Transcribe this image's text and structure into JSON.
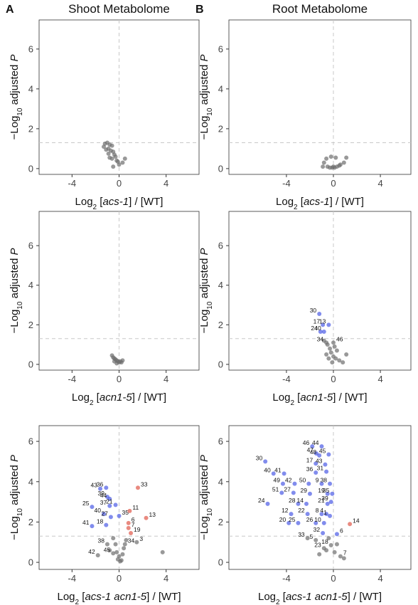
{
  "chart_data": [
    {
      "type": "scatter",
      "panel": "A",
      "title": "Shoot Metabolome",
      "y_label": [
        {
          "text": "−Log",
          "style": "plain"
        },
        {
          "text": "10",
          "style": "sub"
        },
        {
          "text": " adjusted ",
          "style": "plain"
        },
        {
          "text": "P",
          "style": "italic"
        }
      ],
      "x_label": [
        {
          "text": "Log",
          "style": "plain"
        },
        {
          "text": "2",
          "style": "sub"
        },
        {
          "text": " [",
          "style": "plain"
        },
        {
          "text": "acs-1",
          "style": "italic"
        },
        {
          "text": "] / [WT]",
          "style": "plain"
        }
      ],
      "xlim": [
        -6.8,
        6.8
      ],
      "ylim": [
        -0.29,
        7.46
      ],
      "xticks": [
        -4,
        0,
        4
      ],
      "yticks": [
        0,
        2,
        4,
        6
      ],
      "hline": 1.3,
      "vline": 0,
      "series": [
        {
          "color": "#6e6e6e",
          "x": [
            -1.2,
            -1.0,
            -0.8,
            -0.6,
            -0.9,
            -1.1,
            -0.7,
            -0.5,
            -0.4,
            -0.3,
            -0.8,
            -0.6,
            -0.2,
            -0.1,
            0.0,
            0.3,
            0.5,
            -1.3,
            -0.9,
            -0.5
          ],
          "y": [
            1.25,
            1.3,
            1.2,
            1.15,
            1.0,
            0.95,
            0.9,
            0.85,
            0.7,
            0.6,
            0.55,
            0.5,
            0.4,
            0.35,
            0.2,
            0.3,
            0.5,
            1.1,
            0.75,
            0.1
          ]
        }
      ]
    },
    {
      "type": "scatter",
      "panel": "B",
      "title": "Root Metabolome",
      "y_label": [
        {
          "text": "−Log",
          "style": "plain"
        },
        {
          "text": "10",
          "style": "sub"
        },
        {
          "text": " adjusted ",
          "style": "plain"
        },
        {
          "text": "P",
          "style": "italic"
        }
      ],
      "x_label": [
        {
          "text": "Log",
          "style": "plain"
        },
        {
          "text": "2",
          "style": "sub"
        },
        {
          "text": " [",
          "style": "plain"
        },
        {
          "text": "acs-1",
          "style": "italic"
        },
        {
          "text": "] / [WT]",
          "style": "plain"
        }
      ],
      "xlim": [
        -8.9,
        6.6
      ],
      "ylim": [
        -0.29,
        7.46
      ],
      "xticks": [
        -4,
        0,
        4
      ],
      "yticks": [
        0,
        2,
        4,
        6
      ],
      "hline": 1.3,
      "vline": 0,
      "series": [
        {
          "color": "#6e6e6e",
          "x": [
            -0.8,
            -0.5,
            -0.3,
            -0.1,
            0.1,
            0.3,
            0.6,
            0.9,
            1.1,
            -0.6,
            -0.2,
            0.2,
            0.5,
            0.0,
            -0.9
          ],
          "y": [
            0.3,
            0.1,
            0.05,
            0.05,
            0.05,
            0.1,
            0.2,
            0.3,
            0.55,
            0.5,
            0.6,
            0.55,
            0.15,
            0.1,
            0.1
          ]
        }
      ]
    },
    {
      "type": "scatter",
      "y_label": [
        {
          "text": "−Log",
          "style": "plain"
        },
        {
          "text": "10",
          "style": "sub"
        },
        {
          "text": " adjusted ",
          "style": "plain"
        },
        {
          "text": "P",
          "style": "italic"
        }
      ],
      "x_label": [
        {
          "text": "Log",
          "style": "plain"
        },
        {
          "text": "2",
          "style": "sub"
        },
        {
          "text": " [",
          "style": "plain"
        },
        {
          "text": "acn1-5",
          "style": "italic"
        },
        {
          "text": "] / [WT]",
          "style": "plain"
        }
      ],
      "xlim": [
        -6.8,
        6.8
      ],
      "ylim": [
        -0.29,
        7.73
      ],
      "xticks": [
        -4,
        0,
        4
      ],
      "yticks": [
        0,
        2,
        4,
        6
      ],
      "hline": 1.3,
      "vline": 0,
      "series": [
        {
          "color": "#6e6e6e",
          "x": [
            -0.6,
            -0.5,
            -0.4,
            -0.3,
            -0.2,
            -0.1,
            0,
            0.1,
            0.2,
            0.3,
            -0.4,
            -0.2
          ],
          "y": [
            0.45,
            0.35,
            0.3,
            0.25,
            0.2,
            0.15,
            0.1,
            0.15,
            0.1,
            0.2,
            0.15,
            0.05
          ]
        }
      ]
    },
    {
      "type": "scatter",
      "y_label": [
        {
          "text": "−Log",
          "style": "plain"
        },
        {
          "text": "10",
          "style": "sub"
        },
        {
          "text": " adjusted ",
          "style": "plain"
        },
        {
          "text": "P",
          "style": "italic"
        }
      ],
      "x_label": [
        {
          "text": "Log",
          "style": "plain"
        },
        {
          "text": "2",
          "style": "sub"
        },
        {
          "text": " [",
          "style": "plain"
        },
        {
          "text": "acn1-5",
          "style": "italic"
        },
        {
          "text": "] / [WT]",
          "style": "plain"
        }
      ],
      "xlim": [
        -8.9,
        6.6
      ],
      "ylim": [
        -0.29,
        7.73
      ],
      "xticks": [
        -4,
        0,
        4
      ],
      "yticks": [
        0,
        2,
        4,
        6
      ],
      "hline": 1.3,
      "vline": 0,
      "series": [
        {
          "color": "#6e6e6e",
          "x": [
            -0.8,
            -0.5,
            -0.3,
            -0.2,
            0,
            0.2,
            0.5,
            0.8,
            1.1,
            -0.4,
            -0.1,
            0.3,
            0.1,
            -0.6
          ],
          "y": [
            1.2,
            1.0,
            0.8,
            0.6,
            0.4,
            0.3,
            0.2,
            0.1,
            0.5,
            0.3,
            0.1,
            0.7,
            0.9,
            0.5
          ]
        },
        {
          "color": "#6e6e6e",
          "x": [
            -0.6,
            0.0
          ],
          "y": [
            1.1,
            1.1
          ],
          "labels": [
            "34",
            "46"
          ]
        },
        {
          "color": "#4b5be6",
          "x": [
            -1.2,
            -0.9,
            -0.4,
            -1.1,
            -0.8
          ],
          "y": [
            2.55,
            2.0,
            2.0,
            1.65,
            1.65
          ],
          "labels": [
            "30",
            "17",
            "13",
            "24",
            "40"
          ]
        }
      ]
    },
    {
      "type": "scatter",
      "y_label": [
        {
          "text": "−Log",
          "style": "plain"
        },
        {
          "text": "10",
          "style": "sub"
        },
        {
          "text": " adjusted ",
          "style": "plain"
        },
        {
          "text": "P",
          "style": "italic"
        }
      ],
      "x_label": [
        {
          "text": "Log",
          "style": "plain"
        },
        {
          "text": "2",
          "style": "sub"
        },
        {
          "text": " [",
          "style": "plain"
        },
        {
          "text": "acs-1 acn1-5",
          "style": "italic"
        },
        {
          "text": "] / [WT]",
          "style": "plain"
        }
      ],
      "xlim": [
        -6.8,
        6.8
      ],
      "ylim": [
        -0.35,
        6.78
      ],
      "xticks": [
        -4,
        0,
        4
      ],
      "yticks": [
        0,
        2,
        4,
        6
      ],
      "hline": 1.3,
      "vline": 0,
      "series": [
        {
          "color": "#6e6e6e",
          "x": [
            -0.5,
            -0.3,
            -0.2,
            0,
            0.2,
            0.4,
            -0.8,
            0.1,
            0.3,
            3.7,
            -0.1,
            0.6
          ],
          "y": [
            1.2,
            0.9,
            0.5,
            0.3,
            0.1,
            0.7,
            0.6,
            0.05,
            0.4,
            0.5,
            0.15,
            1.1
          ]
        },
        {
          "color": "#6e6e6e",
          "x": [
            -1.8,
            -0.5,
            -1.0,
            0.5,
            1.5
          ],
          "y": [
            0.35,
            0.45,
            0.9,
            0.9,
            1.0
          ],
          "labels": [
            "42",
            "45",
            "38",
            "34",
            "3"
          ]
        },
        {
          "color": "#4b5be6",
          "x": [
            -1.6,
            -1.1,
            -1.0,
            -0.8,
            -2.3,
            -1.3,
            -0.8,
            -0.3,
            -1.1,
            0.0,
            -2.3,
            -0.7
          ],
          "y": [
            3.65,
            3.7,
            3.25,
            3.15,
            2.75,
            2.4,
            2.8,
            2.85,
            1.85,
            2.3,
            1.8,
            2.25
          ],
          "labels": [
            "43",
            "36",
            "39",
            "44",
            "25",
            "40",
            "37",
            "21",
            "18",
            "35",
            "41",
            "27"
          ]
        },
        {
          "color": "#e0584a",
          "x": [
            1.6,
            0.9,
            2.3,
            0.8,
            0.8,
            1.0
          ],
          "y": [
            3.7,
            2.55,
            2.2,
            1.95,
            1.7,
            1.45
          ],
          "labels": [
            "33",
            "11",
            "13",
            "6",
            "7",
            "19"
          ]
        }
      ]
    },
    {
      "type": "scatter",
      "y_label": [
        {
          "text": "−Log",
          "style": "plain"
        },
        {
          "text": "10",
          "style": "sub"
        },
        {
          "text": " adjusted ",
          "style": "plain"
        },
        {
          "text": "P",
          "style": "italic"
        }
      ],
      "x_label": [
        {
          "text": "Log",
          "style": "plain"
        },
        {
          "text": "2",
          "style": "sub"
        },
        {
          "text": " [",
          "style": "plain"
        },
        {
          "text": "acs-1 acn1-5",
          "style": "italic"
        },
        {
          "text": "] / [WT]",
          "style": "plain"
        }
      ],
      "xlim": [
        -8.9,
        6.6
      ],
      "ylim": [
        -0.35,
        6.78
      ],
      "xticks": [
        -4,
        0,
        4
      ],
      "yticks": [
        0,
        2,
        4,
        6
      ],
      "hline": 1.3,
      "vline": 0,
      "series": [
        {
          "color": "#6e6e6e",
          "x": [
            -0.4,
            0.1,
            0.3,
            -1.2,
            0.9,
            -0.6
          ],
          "y": [
            1.2,
            0.5,
            0.9,
            0.4,
            0.2,
            0.6
          ]
        },
        {
          "color": "#6e6e6e",
          "x": [
            -2.2,
            -1.5,
            -0.8,
            -0.2,
            0.6
          ],
          "y": [
            1.2,
            1.1,
            0.7,
            0.85,
            0.3
          ],
          "labels": [
            "33",
            "5",
            "23",
            "18",
            "7"
          ]
        },
        {
          "color": "#4b5be6",
          "x": [
            -1.8,
            -1.0,
            -1.45,
            -1.2,
            -0.4,
            -5.8,
            -1.5,
            -0.7,
            -5.1,
            -4.2,
            -1.5,
            -0.6,
            -4.3,
            -3.3,
            -2.1,
            -1.0,
            -0.3,
            -4.4,
            -3.4,
            -2.0,
            -0.5,
            -0.1,
            -5.6,
            -3.0,
            -2.3,
            -0.5,
            -0.2,
            -3.6,
            -2.2,
            -1.0,
            -0.6,
            -0.3,
            -3.8,
            -3.0,
            -1.5,
            -0.8,
            -0.9,
            0.3
          ],
          "y": [
            5.75,
            5.75,
            5.4,
            5.3,
            5.35,
            5.0,
            4.9,
            4.85,
            4.4,
            4.4,
            4.45,
            4.5,
            3.9,
            3.9,
            3.9,
            3.9,
            3.9,
            3.45,
            3.45,
            3.4,
            3.4,
            3.4,
            2.9,
            2.9,
            2.9,
            2.9,
            3.0,
            2.4,
            2.4,
            2.4,
            2.4,
            2.3,
            1.95,
            1.95,
            1.95,
            1.95,
            1.45,
            1.4
          ],
          "labels": [
            "46",
            "44",
            "47",
            "48",
            "45",
            "30",
            "17",
            "43",
            "40",
            "41",
            "36",
            "31",
            "49",
            "42",
            "50",
            "9",
            "38",
            "51",
            "27",
            "29",
            "19",
            "35",
            "24",
            "28",
            "14",
            "21",
            "39",
            "12",
            "22",
            "8",
            "4",
            "1",
            "20",
            "25",
            "26",
            "10",
            "32",
            "6"
          ]
        },
        {
          "color": "#e0584a",
          "x": [
            1.4
          ],
          "y": [
            1.9
          ],
          "labels": [
            "14"
          ]
        }
      ]
    }
  ]
}
